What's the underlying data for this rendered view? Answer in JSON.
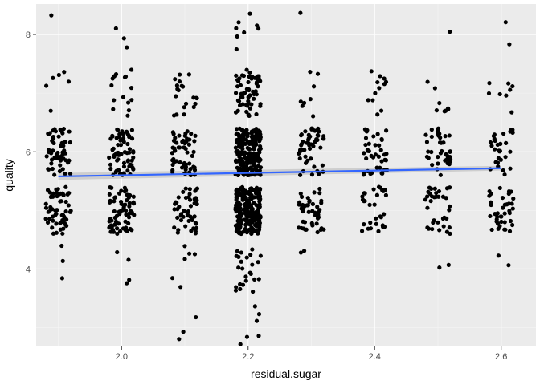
{
  "chart_data": {
    "type": "scatter",
    "title": "",
    "xlabel": "residual.sugar",
    "ylabel": "quality",
    "xlim": [
      1.865,
      2.655
    ],
    "ylim": [
      2.68,
      8.52
    ],
    "x_ticks": [
      2.0,
      2.2,
      2.4,
      2.6
    ],
    "x_tick_labels": [
      "2.0",
      "2.2",
      "2.4",
      "2.6"
    ],
    "y_ticks": [
      4,
      6,
      8
    ],
    "y_tick_labels": [
      "4",
      "6",
      "8"
    ],
    "grid": true,
    "jitter": {
      "x": 0.02,
      "y": 0.4
    },
    "groups": [
      {
        "x": 1.9,
        "counts": {
          "4": 3,
          "5": 60,
          "6": 55,
          "7": 6,
          "8": 1
        }
      },
      {
        "x": 2.0,
        "counts": {
          "4": 4,
          "5": 70,
          "6": 68,
          "7": 15,
          "8": 3
        }
      },
      {
        "x": 2.1,
        "counts": {
          "3": 3,
          "4": 6,
          "5": 50,
          "6": 55,
          "7": 20
        }
      },
      {
        "x": 2.2,
        "counts": {
          "3": 6,
          "4": 25,
          "5": 230,
          "6": 220,
          "7": 60,
          "8": 8
        }
      },
      {
        "x": 2.3,
        "counts": {
          "4": 2,
          "5": 45,
          "6": 50,
          "7": 8,
          "8": 1
        }
      },
      {
        "x": 2.4,
        "counts": {
          "5": 30,
          "6": 40,
          "7": 12
        }
      },
      {
        "x": 2.5,
        "counts": {
          "4": 2,
          "5": 35,
          "6": 40,
          "7": 8,
          "8": 1
        }
      },
      {
        "x": 2.6,
        "counts": {
          "4": 2,
          "5": 40,
          "6": 30,
          "7": 8,
          "8": 2
        }
      }
    ],
    "trend": {
      "method": "lm",
      "x": [
        1.9,
        2.6
      ],
      "y": [
        5.58,
        5.72
      ],
      "se_band": [
        0.06,
        0.04
      ],
      "color": "#3366ff"
    },
    "colors": {
      "panel": "#ebebeb",
      "grid_major": "#ffffff",
      "grid_minor": "#f5f5f5",
      "point": "#000000",
      "se_band": "#999999"
    }
  }
}
